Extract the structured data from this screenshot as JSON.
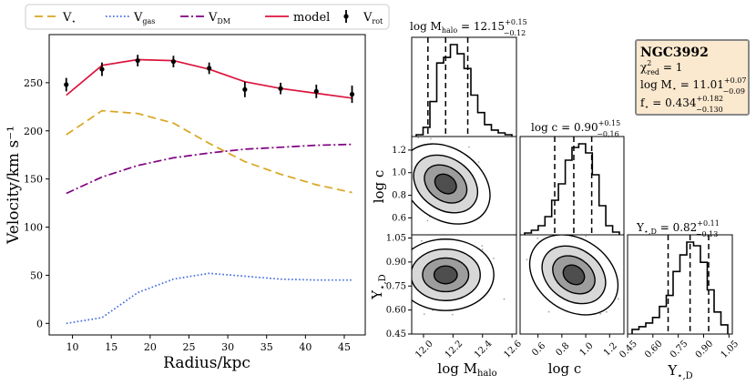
{
  "chart_data": [
    {
      "type": "line",
      "title": "",
      "xlabel": "Radius/kpc",
      "ylabel": "Velocity/km s⁻¹",
      "xlim": [
        7,
        47.7
      ],
      "ylim": [
        -12,
        300
      ],
      "xticks": [
        10,
        15,
        20,
        25,
        30,
        35,
        40,
        45
      ],
      "yticks": [
        0,
        50,
        100,
        150,
        200,
        250
      ],
      "legend_position": "top",
      "legend": [
        {
          "key": "vstar",
          "label": "V",
          "sub": "⋆"
        },
        {
          "key": "vgas",
          "label": "V",
          "sub": "gas"
        },
        {
          "key": "vdm",
          "label": "V",
          "sub": "DM"
        },
        {
          "key": "model",
          "label": "model",
          "sub": ""
        },
        {
          "key": "vrot",
          "label": "V",
          "sub": "rot"
        }
      ],
      "x": [
        9.2,
        13.8,
        18.4,
        23.0,
        27.6,
        32.2,
        36.8,
        41.4,
        46.0
      ],
      "series": [
        {
          "key": "vstar",
          "name": "V⋆",
          "color": "#daa520",
          "style": "dashed",
          "values": [
            196,
            221,
            218,
            208,
            187,
            168,
            155,
            144,
            136
          ]
        },
        {
          "key": "vgas",
          "name": "Vgas",
          "color": "#4169e1",
          "style": "dotted",
          "values": [
            0,
            6,
            32,
            46,
            52,
            49,
            46,
            45,
            45
          ]
        },
        {
          "key": "vdm",
          "name": "VDM",
          "color": "#800080",
          "style": "dashdot",
          "values": [
            135,
            152,
            164,
            172,
            177,
            181,
            183,
            185,
            186
          ]
        },
        {
          "key": "model",
          "name": "model",
          "color": "#dc143c",
          "style": "solid",
          "values": [
            237,
            268,
            274,
            273,
            264,
            251,
            244,
            239,
            234
          ]
        }
      ],
      "points": {
        "key": "vrot",
        "name": "Vrot",
        "color": "#000000",
        "values": [
          248,
          264,
          273,
          272,
          265,
          243,
          244,
          241,
          238
        ],
        "errors": [
          7,
          7,
          6,
          6,
          6,
          8,
          6,
          7,
          9
        ]
      }
    },
    {
      "type": "corner",
      "parameters": [
        "log Mhalo",
        "log c",
        "Υ⋆,D"
      ],
      "marginals": [
        {
          "param": "log Mhalo",
          "title": "log Mhalo = 12.15 +0.15 −0.12",
          "median": 12.15,
          "err_plus": 0.15,
          "err_minus": 0.12,
          "range": [
            11.92,
            12.63
          ],
          "ticks": [
            12.0,
            12.2,
            12.4,
            12.6
          ],
          "tick_labels": [
            "12.0",
            "12.2",
            "12.4",
            "12.6"
          ],
          "hist": [
            0.02,
            0.1,
            0.38,
            0.8,
            0.86,
            1.0,
            0.9,
            0.74,
            0.45,
            0.26,
            0.13,
            0.07,
            0.04,
            0.02
          ]
        },
        {
          "param": "log c",
          "title": "log c = 0.90 +0.15 −0.16",
          "median": 0.9,
          "err_plus": 0.15,
          "err_minus": 0.16,
          "range": [
            0.45,
            1.32
          ],
          "ticks": [
            0.6,
            0.8,
            1.0,
            1.2
          ],
          "tick_labels": [
            "0.6",
            "0.8",
            "1.0",
            "1.2"
          ],
          "hist": [
            0.02,
            0.05,
            0.1,
            0.2,
            0.38,
            0.56,
            0.82,
            0.96,
            1.0,
            0.9,
            0.66,
            0.32,
            0.1,
            0.03
          ]
        },
        {
          "param": "Υ⋆,D",
          "title": "Υ⋆,D = 0.82 +0.11 −0.13",
          "median": 0.82,
          "err_plus": 0.11,
          "err_minus": 0.13,
          "range": [
            0.45,
            1.07
          ],
          "ticks": [
            0.45,
            0.6,
            0.75,
            0.9,
            1.05
          ],
          "tick_labels": [
            "0.45",
            "0.60",
            "0.75",
            "0.90",
            "1.05"
          ],
          "hist": [
            0.05,
            0.08,
            0.12,
            0.18,
            0.3,
            0.42,
            0.68,
            0.86,
            1.0,
            0.96,
            0.78,
            0.48,
            0.24,
            0.1
          ]
        }
      ],
      "axis_labels": [
        "log Mhalo",
        "log c",
        "Υ⋆,D"
      ]
    }
  ],
  "info_box": {
    "galaxy": "NGC3992",
    "chi2": "χ²red = 1",
    "logMstar": "log M⋆ = 11.01 +0.07 −0.09",
    "fstar": "f⋆ = 0.434 +0.182 −0.130"
  }
}
